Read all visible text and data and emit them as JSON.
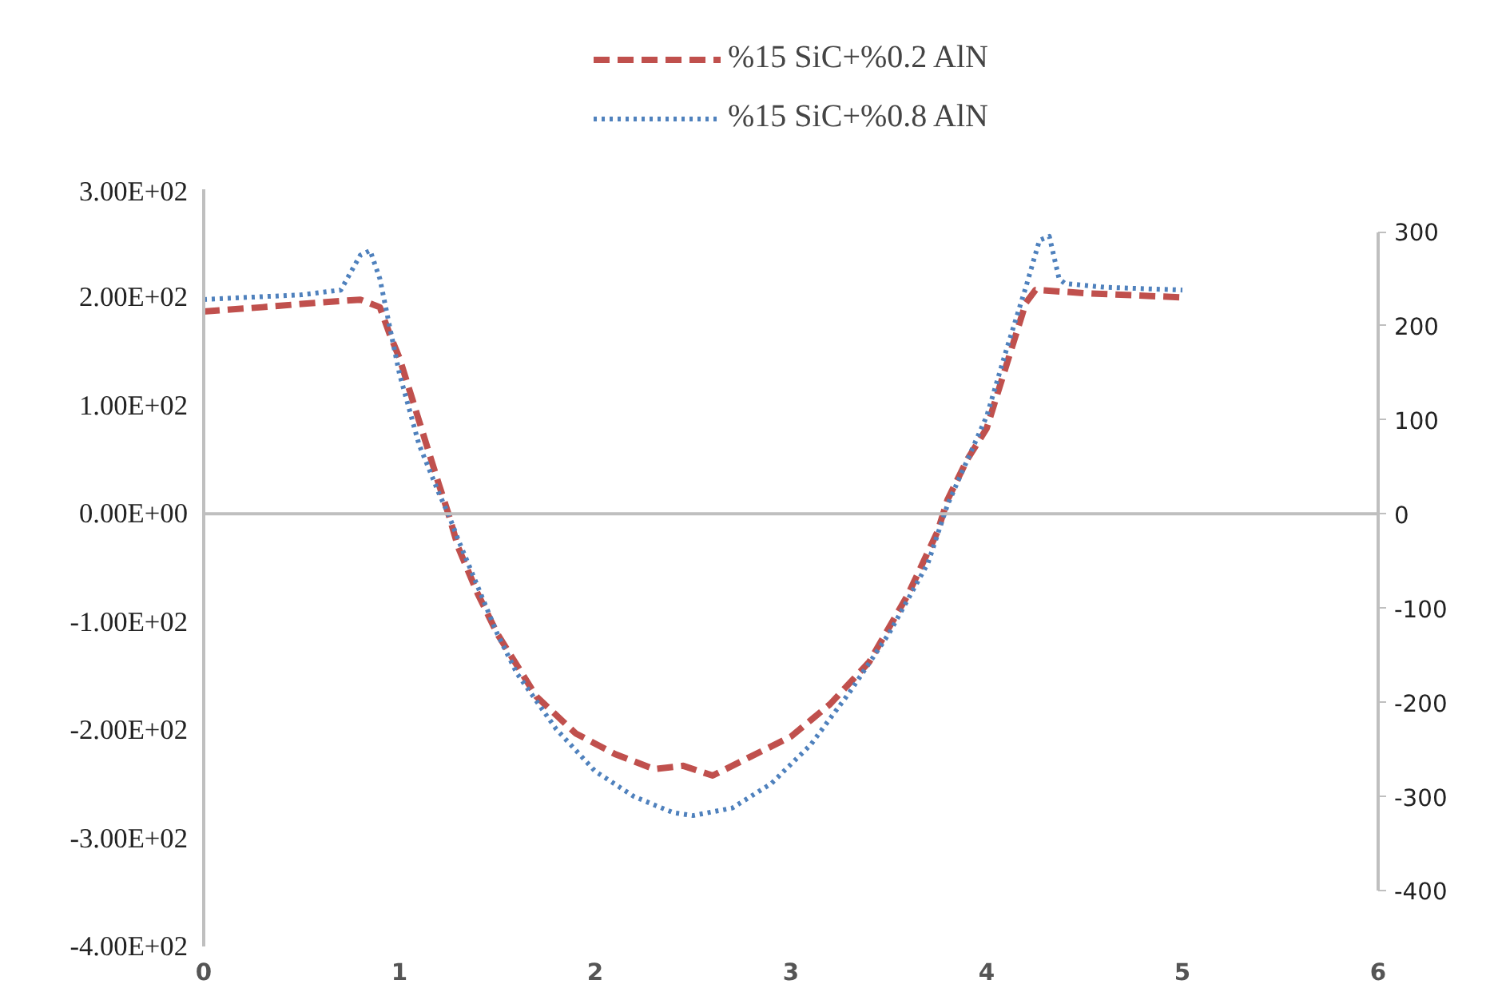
{
  "chart_data": {
    "type": "line",
    "xlim": [
      0,
      6
    ],
    "xticks": [
      0,
      1,
      2,
      3,
      4,
      5,
      6
    ],
    "ylim": [
      -400,
      300
    ],
    "yticks": [
      {
        "value": 300,
        "label": "3.00E+02"
      },
      {
        "value": 200,
        "label": "2.00E+02"
      },
      {
        "value": 100,
        "label": "1.00E+02"
      },
      {
        "value": 0,
        "label": "0.00E+00"
      },
      {
        "value": -100,
        "label": "-1.00E+02"
      },
      {
        "value": -200,
        "label": "-2.00E+02"
      },
      {
        "value": -300,
        "label": "-3.00E+02"
      },
      {
        "value": -400,
        "label": "-4.00E+02"
      }
    ],
    "y2lim": [
      -459,
      345
    ],
    "y2ticks": [
      300,
      200,
      100,
      0,
      -100,
      -200,
      -300,
      -400
    ],
    "ref_lines": [
      {
        "axis": "y",
        "value": 0,
        "color": "#bfbfbf"
      }
    ],
    "grid": false,
    "legend": "top",
    "marker": "none",
    "series": [
      {
        "name": "%15 SiC+%0.2 AlN",
        "color": "#c0504d",
        "line_style": "dashed",
        "axis": "y",
        "x": [
          0,
          0.3,
          0.5,
          0.8,
          0.9,
          0.95,
          1.0,
          1.1,
          1.2,
          1.25,
          1.3,
          1.4,
          1.5,
          1.6,
          1.7,
          1.9,
          2.1,
          2.3,
          2.45,
          2.6,
          2.8,
          3.0,
          3.2,
          3.4,
          3.6,
          3.75,
          3.8,
          3.9,
          4.0,
          4.1,
          4.2,
          4.25,
          4.5,
          5.0
        ],
        "values": [
          187,
          191,
          194,
          198,
          191,
          166,
          144,
          86,
          28,
          0,
          -31,
          -74,
          -111,
          -140,
          -169,
          -203,
          -222,
          -236,
          -233,
          -242,
          -224,
          -206,
          -176,
          -137,
          -74,
          -16,
          13,
          50,
          79,
          137,
          195,
          207,
          204,
          200
        ]
      },
      {
        "name": "%15 SiC+%0.8 AlN",
        "color": "#4f81bd",
        "line_style": "dotted",
        "axis": "y2",
        "x": [
          0,
          0.3,
          0.5,
          0.7,
          0.8,
          0.85,
          0.9,
          0.95,
          1.0,
          1.1,
          1.2,
          1.25,
          1.3,
          1.4,
          1.5,
          1.6,
          1.8,
          2.0,
          2.2,
          2.4,
          2.5,
          2.7,
          2.9,
          3.1,
          3.3,
          3.5,
          3.7,
          3.8,
          3.9,
          4.0,
          4.1,
          4.2,
          4.27,
          4.32,
          4.37,
          4.4,
          4.6,
          5.0
        ],
        "values": [
          228,
          231,
          233,
          238,
          275,
          280,
          250,
          199,
          149,
          74,
          23,
          0,
          -27,
          -77,
          -127,
          -169,
          -228,
          -273,
          -300,
          -317,
          -320,
          -312,
          -286,
          -245,
          -189,
          -127,
          -52,
          10,
          57,
          104,
          174,
          241,
          291,
          295,
          250,
          245,
          241,
          238
        ]
      }
    ]
  }
}
